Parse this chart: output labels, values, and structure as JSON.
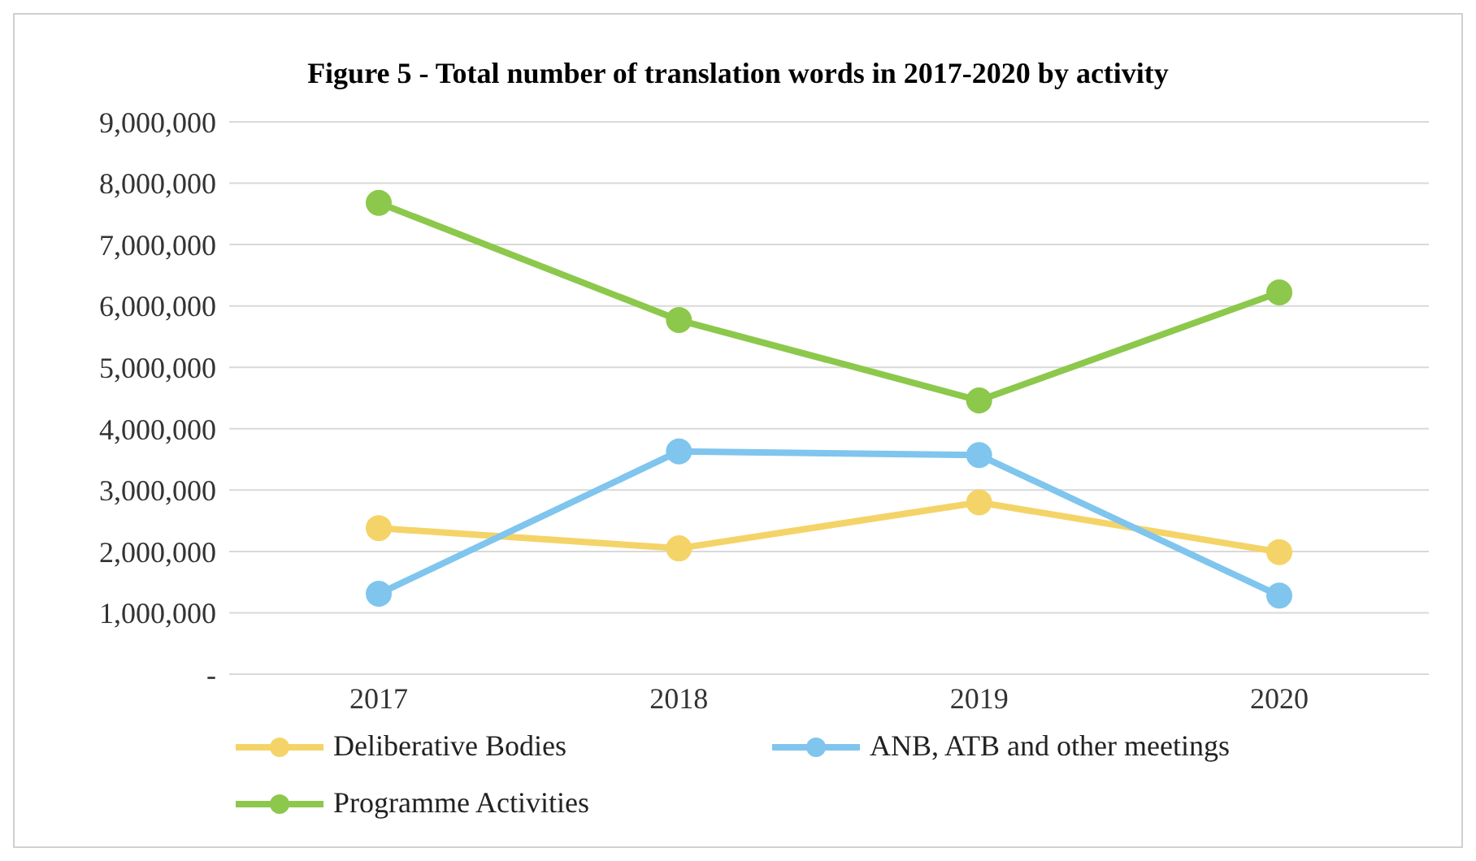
{
  "chart_data": {
    "type": "line",
    "title": "Figure 5 - Total number of translation words in 2017-2020 by activity",
    "categories": [
      "2017",
      "2018",
      "2019",
      "2020"
    ],
    "series": [
      {
        "name": "Deliberative Bodies",
        "color": "#f4d468",
        "values": [
          2380000,
          2050000,
          2800000,
          1990000
        ]
      },
      {
        "name": "ANB, ATB and other meetings",
        "color": "#7fc5ee",
        "values": [
          1310000,
          3630000,
          3570000,
          1280000
        ]
      },
      {
        "name": "Programme Activities",
        "color": "#8cc84b",
        "values": [
          7680000,
          5770000,
          4460000,
          6220000
        ]
      }
    ],
    "ylim": [
      0,
      9000000
    ],
    "yticks": [
      {
        "value": 0,
        "label": "-"
      },
      {
        "value": 1000000,
        "label": "1,000,000"
      },
      {
        "value": 2000000,
        "label": "2,000,000"
      },
      {
        "value": 3000000,
        "label": "3,000,000"
      },
      {
        "value": 4000000,
        "label": "4,000,000"
      },
      {
        "value": 5000000,
        "label": "5,000,000"
      },
      {
        "value": 6000000,
        "label": "6,000,000"
      },
      {
        "value": 7000000,
        "label": "7,000,000"
      },
      {
        "value": 8000000,
        "label": "8,000,000"
      },
      {
        "value": 9000000,
        "label": "9,000,000"
      }
    ],
    "grid": "y",
    "legend": "bottom",
    "marker": "circle",
    "line_style": "solid"
  }
}
